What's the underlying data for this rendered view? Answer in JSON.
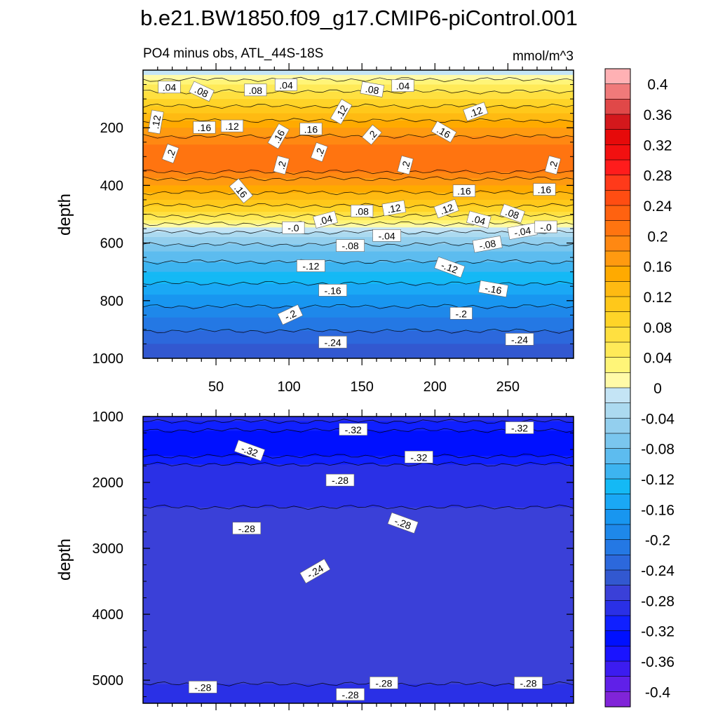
{
  "figure": {
    "title": "b.e21.BW1850.f09_g17.CMIP6-piControl.001",
    "subtitle_left": "PO4 minus obs, ATL_44S-18S",
    "subtitle_right": "mmol/m^3"
  },
  "chart_data": [
    {
      "type": "heatmap",
      "panel": "upper",
      "ylabel": "depth",
      "xlim": [
        0,
        295
      ],
      "ylim": [
        1000,
        0
      ],
      "y_reversed": true,
      "x_ticks": [
        50,
        100,
        150,
        200,
        250
      ],
      "y_ticks": [
        200,
        400,
        600,
        800,
        1000
      ],
      "depth_profile": [
        {
          "depth": 0,
          "value": -0.02
        },
        {
          "depth": 15,
          "value": 0.0
        },
        {
          "depth": 50,
          "value": 0.04
        },
        {
          "depth": 100,
          "value": 0.08
        },
        {
          "depth": 150,
          "value": 0.12
        },
        {
          "depth": 200,
          "value": 0.16
        },
        {
          "depth": 260,
          "value": 0.2
        },
        {
          "depth": 330,
          "value": 0.22
        },
        {
          "depth": 400,
          "value": 0.16
        },
        {
          "depth": 450,
          "value": 0.12
        },
        {
          "depth": 490,
          "value": 0.08
        },
        {
          "depth": 520,
          "value": 0.04
        },
        {
          "depth": 545,
          "value": 0.0
        },
        {
          "depth": 580,
          "value": -0.04
        },
        {
          "depth": 630,
          "value": -0.08
        },
        {
          "depth": 700,
          "value": -0.12
        },
        {
          "depth": 780,
          "value": -0.16
        },
        {
          "depth": 860,
          "value": -0.2
        },
        {
          "depth": 950,
          "value": -0.24
        },
        {
          "depth": 1000,
          "value": -0.25
        }
      ],
      "contour_labels": [
        {
          "text": ".04",
          "x": 18,
          "y": 60,
          "angle": 0
        },
        {
          "text": ".08",
          "x": 40,
          "y": 75,
          "angle": 25
        },
        {
          "text": ".08",
          "x": 77,
          "y": 70,
          "angle": 0
        },
        {
          "text": ".04",
          "x": 98,
          "y": 52,
          "angle": 0
        },
        {
          "text": ".08",
          "x": 157,
          "y": 68,
          "angle": 10
        },
        {
          "text": ".04",
          "x": 178,
          "y": 55,
          "angle": 0
        },
        {
          "text": ".12",
          "x": 9,
          "y": 180,
          "angle": -80
        },
        {
          "text": ".16",
          "x": 42,
          "y": 200,
          "angle": 0
        },
        {
          "text": ".12",
          "x": 61,
          "y": 195,
          "angle": 0
        },
        {
          "text": ".16",
          "x": 93,
          "y": 230,
          "angle": -60
        },
        {
          "text": ".16",
          "x": 115,
          "y": 205,
          "angle": 0
        },
        {
          "text": ".12",
          "x": 136,
          "y": 145,
          "angle": -60
        },
        {
          "text": ".2",
          "x": 157,
          "y": 225,
          "angle": -50
        },
        {
          "text": ".16",
          "x": 206,
          "y": 215,
          "angle": 30
        },
        {
          "text": ".12",
          "x": 228,
          "y": 145,
          "angle": -20
        },
        {
          "text": ".2",
          "x": 19,
          "y": 290,
          "angle": -70
        },
        {
          "text": ".2",
          "x": 121,
          "y": 285,
          "angle": -70
        },
        {
          "text": ".2",
          "x": 95,
          "y": 330,
          "angle": -75
        },
        {
          "text": ".2",
          "x": 180,
          "y": 330,
          "angle": -75
        },
        {
          "text": ".2",
          "x": 281,
          "y": 330,
          "angle": -75
        },
        {
          "text": ".16",
          "x": 67,
          "y": 420,
          "angle": 50
        },
        {
          "text": ".16",
          "x": 220,
          "y": 420,
          "angle": 0
        },
        {
          "text": ".16",
          "x": 275,
          "y": 415,
          "angle": 0
        },
        {
          "text": ".08",
          "x": 150,
          "y": 490,
          "angle": 0
        },
        {
          "text": ".12",
          "x": 172,
          "y": 480,
          "angle": -10
        },
        {
          "text": ".12",
          "x": 208,
          "y": 482,
          "angle": -20
        },
        {
          "text": ".04",
          "x": 125,
          "y": 520,
          "angle": -15
        },
        {
          "text": ".04",
          "x": 230,
          "y": 520,
          "angle": 15
        },
        {
          "text": ".08",
          "x": 253,
          "y": 498,
          "angle": 20
        },
        {
          "text": "-.0",
          "x": 103,
          "y": 548,
          "angle": 0
        },
        {
          "text": "-.04",
          "x": 167,
          "y": 575,
          "angle": 0
        },
        {
          "text": "-.04",
          "x": 260,
          "y": 560,
          "angle": -10
        },
        {
          "text": "-.0",
          "x": 276,
          "y": 545,
          "angle": 0
        },
        {
          "text": "-.08",
          "x": 142,
          "y": 610,
          "angle": 0
        },
        {
          "text": "-.08",
          "x": 236,
          "y": 605,
          "angle": -10
        },
        {
          "text": "-.12",
          "x": 115,
          "y": 680,
          "angle": 0
        },
        {
          "text": "-.12",
          "x": 210,
          "y": 685,
          "angle": 20
        },
        {
          "text": "-.16",
          "x": 130,
          "y": 765,
          "angle": 0
        },
        {
          "text": "-.16",
          "x": 240,
          "y": 760,
          "angle": 10
        },
        {
          "text": "-.2",
          "x": 101,
          "y": 850,
          "angle": -25
        },
        {
          "text": "-.2",
          "x": 218,
          "y": 845,
          "angle": 0
        },
        {
          "text": "-.24",
          "x": 130,
          "y": 945,
          "angle": 0
        },
        {
          "text": "-.24",
          "x": 258,
          "y": 935,
          "angle": 0
        }
      ]
    },
    {
      "type": "heatmap",
      "panel": "lower",
      "ylabel": "depth",
      "xlim": [
        0,
        295
      ],
      "ylim": [
        5350,
        1000
      ],
      "y_reversed": true,
      "y_ticks": [
        1000,
        2000,
        3000,
        4000,
        5000
      ],
      "depth_profile": [
        {
          "depth": 1000,
          "value": -0.29
        },
        {
          "depth": 1150,
          "value": -0.31
        },
        {
          "depth": 1300,
          "value": -0.335
        },
        {
          "depth": 1500,
          "value": -0.34
        },
        {
          "depth": 1650,
          "value": -0.31
        },
        {
          "depth": 1800,
          "value": -0.29
        },
        {
          "depth": 2000,
          "value": -0.283
        },
        {
          "depth": 3000,
          "value": -0.275
        },
        {
          "depth": 3500,
          "value": -0.262
        },
        {
          "depth": 4000,
          "value": -0.275
        },
        {
          "depth": 5000,
          "value": -0.279
        },
        {
          "depth": 5350,
          "value": -0.285
        }
      ],
      "contour_labels": [
        {
          "text": "-.32",
          "x": 144,
          "y": 1200,
          "angle": 0
        },
        {
          "text": "-.32",
          "x": 258,
          "y": 1175,
          "angle": 0
        },
        {
          "text": "-.32",
          "x": 73,
          "y": 1520,
          "angle": 20
        },
        {
          "text": "-.32",
          "x": 189,
          "y": 1620,
          "angle": 0
        },
        {
          "text": "-.28",
          "x": 135,
          "y": 1970,
          "angle": 0
        },
        {
          "text": "-.28",
          "x": 71,
          "y": 2700,
          "angle": 0
        },
        {
          "text": "-.28",
          "x": 178,
          "y": 2620,
          "angle": 20
        },
        {
          "text": "-.24",
          "x": 118,
          "y": 3350,
          "angle": -30
        },
        {
          "text": "-.28",
          "x": 41,
          "y": 5110,
          "angle": 0
        },
        {
          "text": "-.28",
          "x": 165,
          "y": 5045,
          "angle": 0
        },
        {
          "text": "-.28",
          "x": 264,
          "y": 5045,
          "angle": 0
        },
        {
          "text": "-.28",
          "x": 142,
          "y": 5220,
          "angle": 0
        }
      ]
    }
  ],
  "colorbar": {
    "labels": [
      "0.4",
      "0.36",
      "0.32",
      "0.28",
      "0.24",
      "0.2",
      "0.16",
      "0.12",
      "0.08",
      "0.04",
      "0",
      "-0.04",
      "-0.08",
      "-0.12",
      "-0.16",
      "-0.2",
      "-0.24",
      "-0.28",
      "-0.32",
      "-0.36",
      "-0.4"
    ],
    "levels": [
      0.42,
      0.4,
      0.38,
      0.36,
      0.34,
      0.32,
      0.3,
      0.28,
      0.26,
      0.24,
      0.22,
      0.2,
      0.18,
      0.16,
      0.14,
      0.12,
      0.1,
      0.08,
      0.06,
      0.04,
      0.02,
      0.0,
      -0.02,
      -0.04,
      -0.06,
      -0.08,
      -0.1,
      -0.12,
      -0.14,
      -0.16,
      -0.18,
      -0.2,
      -0.22,
      -0.24,
      -0.26,
      -0.28,
      -0.3,
      -0.32,
      -0.34,
      -0.36,
      -0.38,
      -0.4,
      -0.42
    ],
    "colors": [
      "#ffb1b4",
      "#f07a7a",
      "#e04848",
      "#d4181c",
      "#e60a0a",
      "#f21010",
      "#ff1c1c",
      "#ff3a1a",
      "#ff4d12",
      "#ff6210",
      "#ff7410",
      "#ff8812",
      "#ff9a10",
      "#ffaa00",
      "#ffba12",
      "#ffc81a",
      "#ffd428",
      "#ffe040",
      "#ffea58",
      "#fff578",
      "#fffaa8",
      "#c4e4f5",
      "#acdaf0",
      "#93cfee",
      "#7ac6ee",
      "#5dbcef",
      "#3db4f0",
      "#14b9f5",
      "#1aa8f5",
      "#1896f0",
      "#1e88ea",
      "#2478e4",
      "#2c68dc",
      "#3258d0",
      "#3a40d8",
      "#2a30e6",
      "#1020ff",
      "#0010ff",
      "#1a14ff",
      "#3c1cf0",
      "#6020e8",
      "#8024d8"
    ]
  }
}
